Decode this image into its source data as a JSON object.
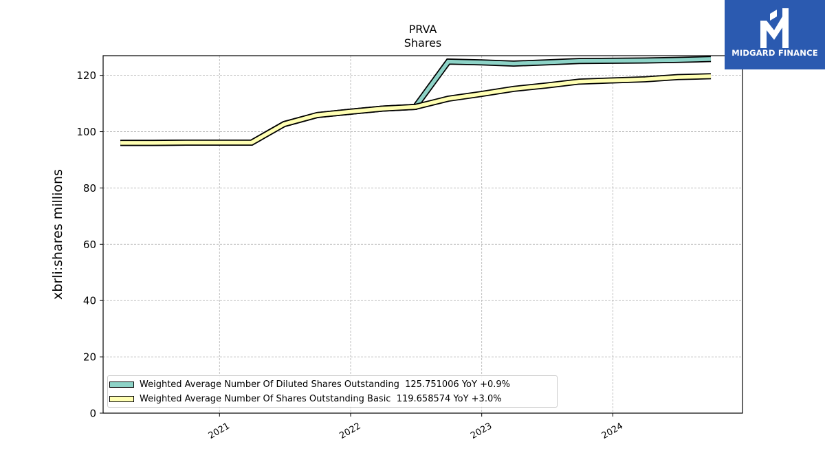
{
  "brand": {
    "name": "MIDGARD FINANCE",
    "bg_color": "#2b5ab0"
  },
  "chart_data": {
    "type": "line",
    "title": "PRVA",
    "subtitle": "Shares",
    "xlabel": "",
    "ylabel": "xbrli:shares millions",
    "ylim": [
      0,
      127
    ],
    "yticks": [
      0,
      20,
      40,
      60,
      80,
      100,
      120
    ],
    "xlim": [
      "2020-02-12",
      "2024-12-27"
    ],
    "xticks": [
      "2021-01-01",
      "2022-01-01",
      "2023-01-01",
      "2024-01-01"
    ],
    "xtick_labels": [
      "2021",
      "2022",
      "2023",
      "2024"
    ],
    "grid": true,
    "legend_position": "lower-left",
    "series": [
      {
        "name": "Weighted Average Number Of Diluted Shares Outstanding",
        "legend_label": "Weighted Average Number Of Diluted Shares Outstanding  125.751006 YoY +0.9%",
        "color": "#8dd3c7",
        "x": [
          "2020-03-31",
          "2020-06-30",
          "2020-09-30",
          "2020-12-31",
          "2021-03-31",
          "2021-06-30",
          "2021-09-30",
          "2021-12-31",
          "2022-03-31",
          "2022-06-30",
          "2022-09-30",
          "2022-12-31",
          "2023-03-31",
          "2023-06-30",
          "2023-09-30",
          "2023-12-31",
          "2024-03-31",
          "2024-06-30",
          "2024-09-30"
        ],
        "values": [
          96.0,
          96.0,
          96.1,
          96.1,
          96.1,
          102.7,
          105.9,
          107.1,
          108.2,
          108.8,
          124.9,
          124.6,
          124.2,
          124.6,
          125.1,
          125.2,
          125.3,
          125.5,
          125.8
        ]
      },
      {
        "name": "Weighted Average Number Of Shares Outstanding Basic",
        "legend_label": "Weighted Average Number Of Shares Outstanding Basic  119.658574 YoY +3.0%",
        "color": "#ffffb3",
        "x": [
          "2020-03-31",
          "2020-06-30",
          "2020-09-30",
          "2020-12-31",
          "2021-03-31",
          "2021-06-30",
          "2021-09-30",
          "2021-12-31",
          "2022-03-31",
          "2022-06-30",
          "2022-09-30",
          "2022-12-31",
          "2023-03-31",
          "2023-06-30",
          "2023-09-30",
          "2023-12-31",
          "2024-03-31",
          "2024-06-30",
          "2024-09-30"
        ],
        "values": [
          96.0,
          96.0,
          96.1,
          96.1,
          96.1,
          102.7,
          105.9,
          107.1,
          108.2,
          108.8,
          111.7,
          113.4,
          115.2,
          116.4,
          117.8,
          118.2,
          118.6,
          119.4,
          119.7
        ]
      }
    ]
  }
}
